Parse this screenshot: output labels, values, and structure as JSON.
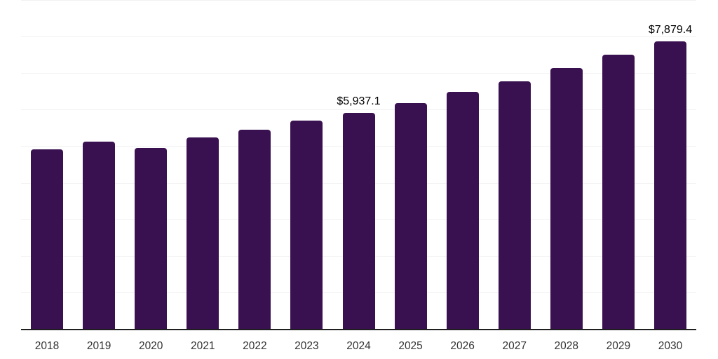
{
  "chart_data": {
    "type": "bar",
    "title": "",
    "xlabel": "",
    "ylabel": "",
    "categories": [
      "2018",
      "2019",
      "2020",
      "2021",
      "2022",
      "2023",
      "2024",
      "2025",
      "2026",
      "2027",
      "2028",
      "2029",
      "2030"
    ],
    "values": [
      4930,
      5150,
      4970,
      5260,
      5470,
      5720,
      5937.1,
      6200,
      6500,
      6790,
      7160,
      7520,
      7879.4
    ],
    "data_labels": [
      {
        "category": "2024",
        "text": "$5,937.1"
      },
      {
        "category": "2030",
        "text": "$7,879.4"
      }
    ],
    "ylim": [
      0,
      9000
    ],
    "gridline_step": 1000,
    "grid": true,
    "legend": false,
    "y_tick_labels_shown": false,
    "colors": {
      "bar": "#3a1150",
      "gridline": "#f1f1f1",
      "axis": "#1f1f1f",
      "tick_label": "#333333",
      "data_label": "#000000",
      "background": "#ffffff"
    }
  }
}
